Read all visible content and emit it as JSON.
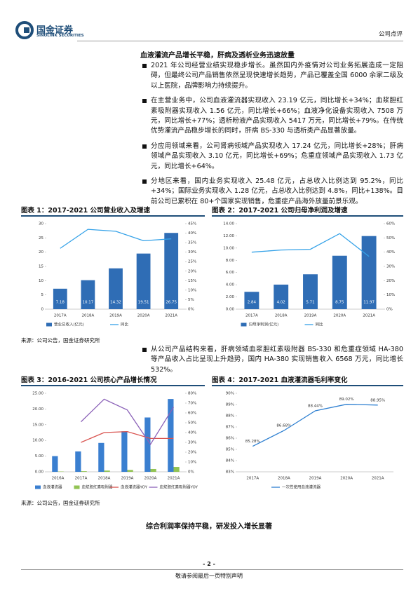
{
  "header": {
    "logo_cn": "国金证券",
    "logo_en": "SINOLINK SECURITIES",
    "tag": "公司点评"
  },
  "heading1": "血液灌流产品增长平稳，肝病及透析业务迅速放量",
  "bullets1": [
    "2021 年公司经营业绩实现稳步增长。虽然国内外疫情对公司业务拓展造成一定阻碍，但最终公司产品销售依然呈现快速增长趋势，产品已覆盖全国 6000 余家二级及以上医院，品牌影响力持续提升。",
    "在主营业务中，公司血液灌流器实现收入 23.19 亿元，同比增长+34%；血浆胆红素吸附器实现收入 1.56 亿元，同比增长+66%；血液净化设备实现收入 7508 万元，同比增长+77%；透析粉液产品实现收入 5417 万元，同比增长+79%。在传统优势灌流产品稳步增长的同时，肝病 BS-330 与透析类产品显著放量。",
    "分应用领域来看，公司肾病领域产品实现收入 17.24 亿元，同比增长+28%；肝病领域产品实现收入 3.10 亿元，同比增长+69%；危重症领域产品实现收入 1.73 亿元，同比增长+64%。",
    "分地区来看，国内业务实现收入 25.48 亿元，占总收入比例达到 95.2%，同比+34%；国际业务实现收入 1.28 亿元，占总收入比例达到 4.8%，同比+138%。目前公司已累积在 80+个国家实现销售，危重症产品海外放量前景乐观。"
  ],
  "rows": [
    {
      "source": "来源：公司公告，国金证券研究所",
      "charts": [
        {
          "type": "bar",
          "title": "图表 1：2017-2021 公司营业收入及增速",
          "categories": [
            "2017A",
            "2018A",
            "2019A",
            "2020A",
            "2021A"
          ],
          "series": [
            {
              "name": "营业总收入(亿元)",
              "type": "bar",
              "color": "#2f6db5",
              "data_labels": true,
              "values": [
                7.18,
                10.17,
                14.32,
                19.51,
                26.75
              ]
            },
            {
              "name": "同比",
              "type": "line",
              "axis": "y2",
              "color": "#35a2e8",
              "values": [
                32,
                42,
                41,
                36,
                37
              ]
            }
          ],
          "ylim": [
            0,
            30
          ],
          "yticks": [
            0,
            5,
            10,
            15,
            20,
            25,
            30
          ],
          "y2lim": [
            0,
            45
          ],
          "y2ticks": [
            {
              "value": 0,
              "label": "0%"
            },
            {
              "value": 5,
              "label": "5%"
            },
            {
              "value": 10,
              "label": "10%"
            },
            {
              "value": 15,
              "label": "15%"
            },
            {
              "value": 20,
              "label": "20%"
            },
            {
              "value": 25,
              "label": "25%"
            },
            {
              "value": 30,
              "label": "30%"
            },
            {
              "value": 35,
              "label": "35%"
            },
            {
              "value": 40,
              "label": "40%"
            },
            {
              "value": 45,
              "label": "45%"
            }
          ]
        },
        {
          "type": "bar",
          "title": "图表 2：2017-2021 公司归母净利润及增速",
          "categories": [
            "2017A",
            "2018A",
            "2019A",
            "2020A",
            "2021A"
          ],
          "series": [
            {
              "name": "归母净利润(亿元)",
              "type": "bar",
              "color": "#2f6db5",
              "data_labels": true,
              "values": [
                2.84,
                4.02,
                5.71,
                8.75,
                11.97
              ]
            },
            {
              "name": "同比",
              "type": "line",
              "axis": "y2",
              "color": "#35a2e8",
              "values": [
                40,
                41.5,
                42,
                53,
                37
              ]
            }
          ],
          "ylim": [
            0,
            14
          ],
          "yticks": [
            {
              "value": 0,
              "label": "0.00"
            },
            {
              "value": 2,
              "label": "2.00"
            },
            {
              "value": 4,
              "label": "4.00"
            },
            {
              "value": 6,
              "label": "6.00"
            },
            {
              "value": 8,
              "label": "8.00"
            },
            {
              "value": 10,
              "label": "10.00"
            },
            {
              "value": 12,
              "label": "12.00"
            },
            {
              "value": 14,
              "label": "14.00"
            }
          ],
          "y2lim": [
            0,
            60
          ],
          "y2ticks": [
            {
              "value": 0,
              "label": "0%"
            },
            {
              "value": 10,
              "label": "10%"
            },
            {
              "value": 20,
              "label": "20%"
            },
            {
              "value": 30,
              "label": "30%"
            },
            {
              "value": 40,
              "label": "40%"
            },
            {
              "value": 50,
              "label": "50%"
            },
            {
              "value": 60,
              "label": "60%"
            }
          ]
        }
      ]
    },
    {
      "source": "来源：公司公告，国金证券研究所",
      "charts": [
        {
          "type": "bar",
          "title": "图表 3：2016-2021 公司核心产品增长情况",
          "categories": [
            "2016A",
            "2017A",
            "2018A",
            "2019A",
            "2020A",
            "2021A"
          ],
          "series": [
            {
              "name": "血液灌流器",
              "type": "bar",
              "color": "#3a7fd0",
              "values": [
                5.0,
                6.5,
                9.2,
                12.9,
                17.3,
                23.19
              ]
            },
            {
              "name": "血浆胆红素吸附器",
              "type": "bar",
              "color": "#92c353",
              "values": [
                0.1,
                0.2,
                0.4,
                0.6,
                0.9,
                1.56
              ]
            },
            {
              "name": "血液灌流器YOY",
              "type": "line",
              "axis": "y2",
              "color": "#d9534f",
              "values": [
                null,
                30,
                40,
                41,
                34,
                34
              ]
            },
            {
              "name": "血浆胆红素吸附器YOY",
              "type": "line",
              "axis": "y2",
              "color": "#8b62b8",
              "values": [
                null,
                51,
                74,
                63,
                28,
                66
              ]
            }
          ],
          "ylim": [
            0,
            25
          ],
          "yticks": [
            {
              "value": 0,
              "label": "0.00"
            },
            {
              "value": 5,
              "label": "5.00"
            },
            {
              "value": 10,
              "label": "10.00"
            },
            {
              "value": 15,
              "label": "15.00"
            },
            {
              "value": 20,
              "label": "20.00"
            },
            {
              "value": 25,
              "label": "25.00"
            }
          ],
          "y2lim": [
            0,
            80
          ],
          "y2ticks": [
            {
              "value": 0,
              "label": "0%"
            },
            {
              "value": 10,
              "label": "10%"
            },
            {
              "value": 20,
              "label": "20%"
            },
            {
              "value": 30,
              "label": "30%"
            },
            {
              "value": 40,
              "label": "40%"
            },
            {
              "value": 50,
              "label": "50%"
            },
            {
              "value": 60,
              "label": "60%"
            },
            {
              "value": 70,
              "label": "70%"
            },
            {
              "value": 80,
              "label": "80%"
            }
          ]
        },
        {
          "type": "line",
          "title": "图表 4：2017-2021 血液灌流器毛利率变化",
          "categories": [
            "2017A",
            "2018A",
            "2019A",
            "2020A",
            "2021A"
          ],
          "series": [
            {
              "name": "一次性使用血液灌流器",
              "type": "line",
              "color": "#2f80d1",
              "values": [
                85.28,
                86.68,
                88.44,
                89.02,
                88.95
              ],
              "value_labels": [
                "85.28%",
                "86.68%",
                "88.44%",
                "89.02%",
                "88.95%"
              ]
            }
          ],
          "ylim": [
            83,
            90
          ],
          "yticks": [
            {
              "value": 83,
              "label": "83%"
            },
            {
              "value": 84,
              "label": "84%"
            },
            {
              "value": 85,
              "label": "85%"
            },
            {
              "value": 86,
              "label": "86%"
            },
            {
              "value": 87,
              "label": "87%"
            },
            {
              "value": 88,
              "label": "88%"
            },
            {
              "value": 89,
              "label": "89%"
            },
            {
              "value": 90,
              "label": "90%"
            }
          ]
        }
      ]
    }
  ],
  "bullets2": [
    "从公司产品结构来看，肝病领域血浆胆红素吸附器 BS-330 和危重症领域 HA-380 等产品收入占比呈现上升趋势，国内 HA-380 实现销售收入 6568 万元，同比增长 532%。"
  ],
  "heading2": "综合利润率保持平稳，研发投入增长显著",
  "footer": {
    "page": "- 2 -",
    "note": "敬请参阅最后一页特别声明"
  }
}
